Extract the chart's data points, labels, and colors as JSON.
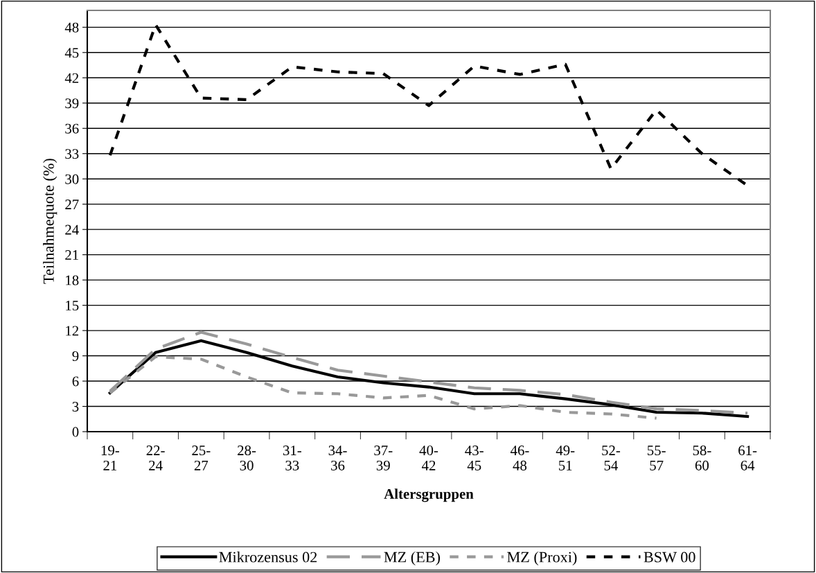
{
  "chart_data": {
    "type": "line",
    "xlabel": "Altersgruppen",
    "ylabel": "Teilnahmequote (%)",
    "categories": [
      "19-\n21",
      "22-\n24",
      "25-\n27",
      "28-\n30",
      "31-\n33",
      "34-\n36",
      "37-\n39",
      "40-\n42",
      "43-\n45",
      "46-\n48",
      "49-\n51",
      "52-\n54",
      "55-\n57",
      "58-\n60",
      "61-\n64"
    ],
    "series": [
      {
        "name": "Mikrozensus 02",
        "color": "#000000",
        "line_style": "solid",
        "values": [
          4.6,
          9.4,
          10.8,
          9.4,
          7.8,
          6.5,
          5.8,
          5.3,
          4.5,
          4.5,
          3.9,
          3.2,
          2.3,
          2.2,
          1.8
        ]
      },
      {
        "name": "MZ (EB)",
        "color": "#999999",
        "line_style": "dashed",
        "values": [
          4.8,
          9.8,
          11.8,
          10.4,
          8.8,
          7.3,
          6.6,
          5.9,
          5.2,
          4.9,
          4.4,
          3.5,
          2.7,
          2.5,
          2.2
        ]
      },
      {
        "name": "MZ (Proxi)",
        "color": "#999999",
        "line_style": "dotted",
        "values": [
          4.6,
          8.9,
          8.6,
          6.5,
          4.6,
          4.5,
          4.0,
          4.3,
          2.7,
          3.1,
          2.3,
          2.1,
          1.6,
          null,
          null
        ]
      },
      {
        "name": "BSW 00",
        "color": "#000000",
        "line_style": "dotted",
        "values": [
          32.8,
          48.3,
          39.6,
          39.4,
          43.3,
          42.7,
          42.5,
          38.7,
          43.4,
          42.4,
          43.6,
          31.2,
          38.2,
          33.0,
          29.2
        ]
      }
    ],
    "ylim": [
      0,
      50
    ],
    "yticks": [
      0,
      3,
      6,
      9,
      12,
      15,
      18,
      21,
      24,
      27,
      30,
      33,
      36,
      39,
      42,
      45,
      48
    ],
    "grid": "y",
    "legend": "bottom",
    "marker": "none"
  }
}
